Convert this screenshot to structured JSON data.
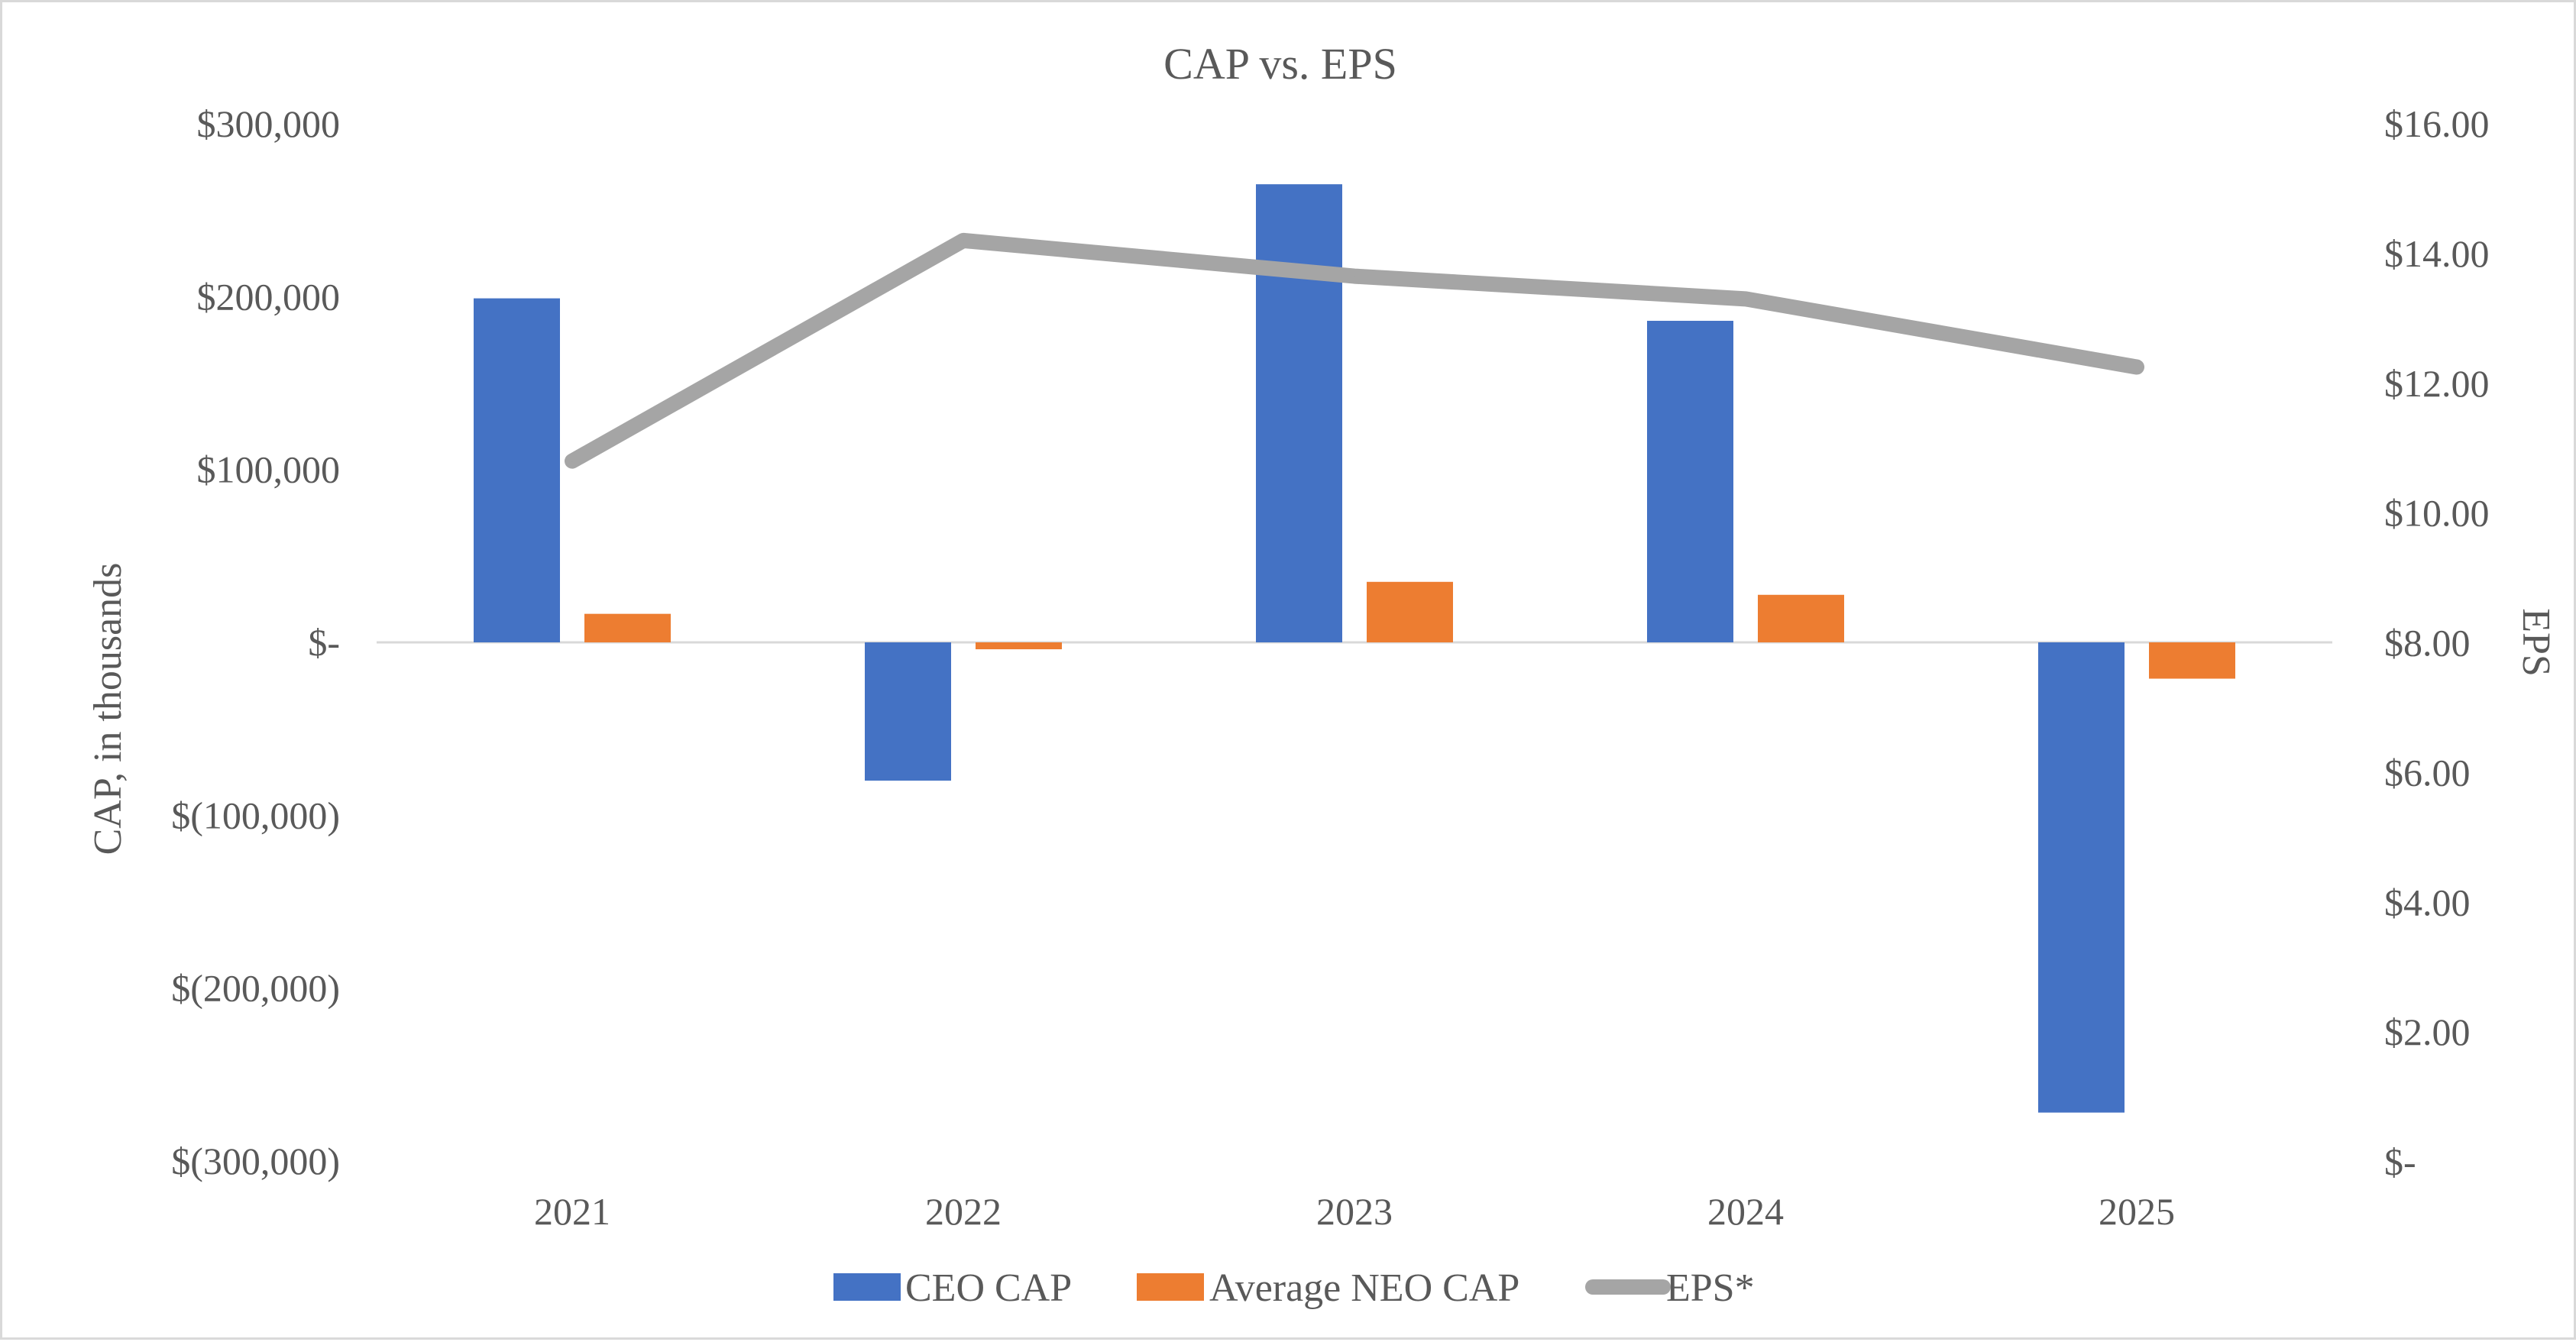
{
  "chart_data": {
    "type": "bar",
    "title": "CAP vs. EPS",
    "categories": [
      "2021",
      "2022",
      "2023",
      "2024",
      "2025"
    ],
    "ylabel": "CAP, in thousands",
    "ylim": [
      -300000,
      300000
    ],
    "yticks": [
      300000,
      200000,
      100000,
      0,
      -100000,
      -200000,
      -300000
    ],
    "ytick_labels": [
      "$300,000",
      "$200,000",
      "$100,000",
      "$-",
      "$(100,000)",
      "$(200,000)",
      "$(300,000)"
    ],
    "y2label": "EPS",
    "y2lim": [
      0,
      16
    ],
    "y2ticks": [
      16,
      14,
      12,
      10,
      8,
      6,
      4,
      2,
      0
    ],
    "y2tick_labels": [
      "$16.00",
      "$14.00",
      "$12.00",
      "$10.00",
      "$8.00",
      "$6.00",
      "$4.00",
      "$2.00",
      "$-"
    ],
    "grid": false,
    "legend_position": "bottom",
    "series": [
      {
        "name": "CEO CAP",
        "type": "bar",
        "axis": "left",
        "color": "#4472c4",
        "values": [
          199000,
          -80000,
          265000,
          186000,
          -272000
        ]
      },
      {
        "name": "Average NEO CAP",
        "type": "bar",
        "axis": "left",
        "color": "#ed7d31",
        "values": [
          16500,
          -4000,
          35000,
          27500,
          -21000
        ]
      },
      {
        "name": "EPS*",
        "type": "line",
        "axis": "right",
        "color": "#a5a5a5",
        "values": [
          10.8,
          14.2,
          13.65,
          13.3,
          12.25
        ]
      }
    ]
  }
}
